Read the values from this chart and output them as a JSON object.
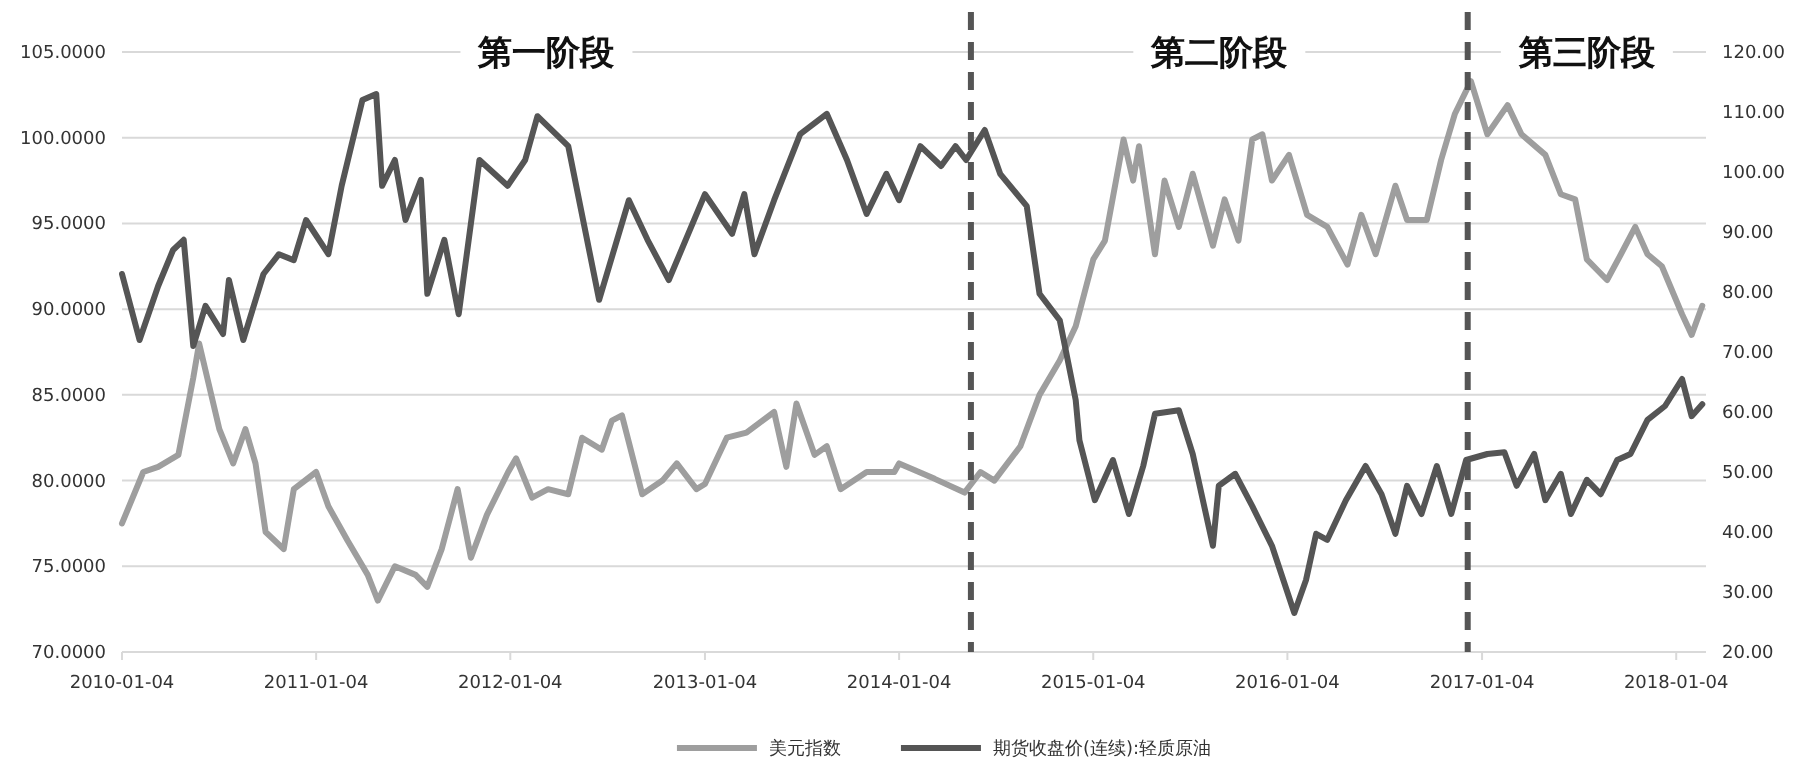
{
  "chart_data": {
    "type": "line",
    "xlim": [
      "2010-01-04",
      "2018-03-01"
    ],
    "xticks": [
      "2010-01-04",
      "2011-01-04",
      "2012-01-04",
      "2013-01-04",
      "2014-01-04",
      "2015-01-04",
      "2016-01-04",
      "2017-01-04",
      "2018-01-04"
    ],
    "ylim": [
      70,
      105
    ],
    "yticks": [
      {
        "value": 70,
        "label": "70.0000"
      },
      {
        "value": 75,
        "label": "75.0000"
      },
      {
        "value": 80,
        "label": "80.0000"
      },
      {
        "value": 85,
        "label": "85.0000"
      },
      {
        "value": 90,
        "label": "90.0000"
      },
      {
        "value": 95,
        "label": "95.0000"
      },
      {
        "value": 100,
        "label": "100.0000"
      },
      {
        "value": 105,
        "label": "105.0000"
      }
    ],
    "y2lim": [
      20,
      120
    ],
    "y2ticks": [
      {
        "value": 20,
        "label": "20.00"
      },
      {
        "value": 30,
        "label": "30.00"
      },
      {
        "value": 40,
        "label": "40.00"
      },
      {
        "value": 50,
        "label": "50.00"
      },
      {
        "value": 60,
        "label": "60.00"
      },
      {
        "value": 70,
        "label": "70.00"
      },
      {
        "value": 80,
        "label": "80.00"
      },
      {
        "value": 90,
        "label": "90.00"
      },
      {
        "value": 100,
        "label": "100.00"
      },
      {
        "value": 110,
        "label": "110.00"
      },
      {
        "value": 120,
        "label": "120.00"
      }
    ],
    "grid": "y",
    "legend": "bottom",
    "line_style": "solid",
    "ref_lines": [
      {
        "axis": "x",
        "value": "2014-05-19",
        "color": "#555555",
        "line_style": "dashed"
      },
      {
        "axis": "x",
        "value": "2016-12-08",
        "color": "#555555",
        "line_style": "dashed"
      }
    ],
    "annotations": [
      "第一阶段",
      "第二阶段",
      "第三阶段"
    ],
    "series": [
      {
        "name": "美元指数",
        "color": "#9e9e9e",
        "x": [
          "2010-01-04",
          "2010-02-13",
          "2010-03-13",
          "2010-04-20",
          "2010-05-18",
          "2010-05-29",
          "2010-07-06",
          "2010-08-01",
          "2010-08-24",
          "2010-09-12",
          "2010-10-01",
          "2010-11-04",
          "2010-11-23",
          "2011-01-04",
          "2011-01-27",
          "2011-03-04",
          "2011-04-11",
          "2011-04-30",
          "2011-06-01",
          "2011-07-10",
          "2011-08-01",
          "2011-08-28",
          "2011-09-27",
          "2011-10-22",
          "2011-11-21",
          "2011-12-31",
          "2012-01-15",
          "2012-02-14",
          "2012-03-15",
          "2012-04-22",
          "2012-05-18",
          "2012-06-24",
          "2012-07-13",
          "2012-08-01",
          "2012-09-08",
          "2012-10-16",
          "2012-11-12",
          "2012-12-19",
          "2013-01-04",
          "2013-02-14",
          "2013-03-23",
          "2013-05-14",
          "2013-06-06",
          "2013-06-25",
          "2013-07-29",
          "2013-08-21",
          "2013-09-16",
          "2013-11-04",
          "2013-12-26",
          "2014-01-04",
          "2014-03-12",
          "2014-05-07",
          "2014-06-06",
          "2014-07-02",
          "2014-08-20",
          "2014-09-25",
          "2014-11-02",
          "2014-12-02",
          "2015-01-04",
          "2015-01-26",
          "2015-03-02",
          "2015-03-20",
          "2015-03-31",
          "2015-04-30",
          "2015-05-18",
          "2015-06-14",
          "2015-07-10",
          "2015-08-17",
          "2015-09-08",
          "2015-10-04",
          "2015-10-30",
          "2015-11-18",
          "2015-12-06",
          "2016-01-07",
          "2016-02-10",
          "2016-03-19",
          "2016-04-26",
          "2016-05-22",
          "2016-06-18",
          "2016-07-25",
          "2016-08-16",
          "2016-09-22",
          "2016-10-19",
          "2016-11-14",
          "2016-12-14",
          "2017-01-14",
          "2017-02-21",
          "2017-03-19",
          "2017-05-03",
          "2017-06-01",
          "2017-06-28",
          "2017-07-20",
          "2017-08-27",
          "2017-09-22",
          "2017-10-19",
          "2017-11-11",
          "2017-12-08",
          "2018-01-15",
          "2018-02-02",
          "2018-02-22"
        ],
        "values": [
          77.5,
          80.5,
          80.8,
          81.5,
          86,
          88,
          83,
          81,
          83,
          81,
          77,
          76,
          79.5,
          80.5,
          78.5,
          76.5,
          74.5,
          73,
          75,
          74.5,
          73.8,
          76,
          79.5,
          75.5,
          78,
          80.5,
          81.3,
          79,
          79.5,
          79.2,
          82.5,
          81.8,
          83.5,
          83.8,
          79.2,
          80,
          81,
          79.5,
          79.8,
          82.5,
          82.8,
          84,
          80.8,
          84.5,
          81.5,
          82,
          79.5,
          80.5,
          80.5,
          81,
          80.1,
          79.3,
          80.5,
          80,
          82,
          85,
          87,
          89,
          92.9,
          94,
          99.9,
          97.5,
          99.5,
          93.2,
          97.5,
          94.8,
          97.9,
          93.7,
          96.4,
          94,
          99.9,
          100.2,
          97.5,
          99,
          95.5,
          94.8,
          92.6,
          95.5,
          93.2,
          97.2,
          95.2,
          95.2,
          98.7,
          101.4,
          103.3,
          100.2,
          101.9,
          100.2,
          99,
          96.7,
          96.4,
          92.9,
          91.7,
          93.2,
          94.8,
          93.2,
          92.5,
          89.7,
          88.5,
          90.2
        ]
      },
      {
        "name": "期货收盘价(连续):轻质原油",
        "color": "#555555",
        "axis": "y2",
        "x": [
          "2010-01-04",
          "2010-02-06",
          "2010-03-13",
          "2010-04-10",
          "2010-04-30",
          "2010-05-18",
          "2010-06-10",
          "2010-07-13",
          "2010-07-24",
          "2010-08-20",
          "2010-09-27",
          "2010-10-26",
          "2010-11-23",
          "2010-12-16",
          "2011-01-27",
          "2011-02-21",
          "2011-04-01",
          "2011-04-27",
          "2011-05-08",
          "2011-06-01",
          "2011-06-21",
          "2011-07-20",
          "2011-08-01",
          "2011-09-02",
          "2011-09-29",
          "2011-11-07",
          "2011-12-30",
          "2012-02-01",
          "2012-02-24",
          "2012-04-22",
          "2012-06-19",
          "2012-08-14",
          "2012-09-18",
          "2012-10-28",
          "2013-01-04",
          "2013-02-24",
          "2013-03-19",
          "2013-04-07",
          "2013-05-14",
          "2013-07-02",
          "2013-08-21",
          "2013-09-28",
          "2013-11-04",
          "2013-12-11",
          "2014-01-04",
          "2014-02-13",
          "2014-03-24",
          "2014-04-20",
          "2014-05-10",
          "2014-06-14",
          "2014-07-13",
          "2014-09-01",
          "2014-09-25",
          "2014-11-02",
          "2014-12-02",
          "2014-12-09",
          "2015-01-07",
          "2015-02-10",
          "2015-03-12",
          "2015-04-08",
          "2015-04-30",
          "2015-06-14",
          "2015-07-10",
          "2015-08-17",
          "2015-08-28",
          "2015-09-28",
          "2015-10-30",
          "2015-12-06",
          "2016-01-17",
          "2016-02-08",
          "2016-02-27",
          "2016-03-19",
          "2016-04-23",
          "2016-05-30",
          "2016-06-29",
          "2016-07-25",
          "2016-08-16",
          "2016-09-12",
          "2016-10-11",
          "2016-11-07",
          "2016-12-05",
          "2017-01-14",
          "2017-02-15",
          "2017-03-10",
          "2017-04-12",
          "2017-05-03",
          "2017-06-01",
          "2017-06-20",
          "2017-07-20",
          "2017-08-15",
          "2017-09-15",
          "2017-10-10",
          "2017-11-11",
          "2017-12-14",
          "2018-01-15",
          "2018-02-02",
          "2018-02-22"
        ],
        "values": [
          83,
          72,
          81,
          87,
          88.7,
          71,
          77.7,
          73,
          82,
          72,
          83,
          86.3,
          85.3,
          92,
          86.3,
          97.7,
          112,
          113,
          97.7,
          102,
          92,
          98.7,
          79.7,
          88.7,
          76.3,
          102,
          97.7,
          102,
          109.3,
          104.3,
          78.7,
          95.3,
          88.7,
          82,
          96.3,
          89.7,
          96.3,
          86.3,
          95.3,
          106.3,
          109.7,
          102,
          93,
          99.7,
          95.3,
          104.3,
          101,
          104.3,
          102,
          107,
          99.7,
          94.3,
          79.7,
          75.3,
          62,
          55.3,
          45.3,
          52,
          43,
          51,
          59.7,
          60.3,
          53,
          37.7,
          47.7,
          49.7,
          44.3,
          37.7,
          26.5,
          32,
          39.7,
          38.7,
          45.3,
          51,
          46.3,
          39.7,
          47.7,
          43,
          51,
          43,
          52,
          53,
          53.3,
          47.7,
          53,
          45.3,
          49.7,
          43,
          48.7,
          46.3,
          52,
          53,
          58.7,
          61,
          65.5,
          59.3,
          61.3
        ]
      }
    ]
  }
}
